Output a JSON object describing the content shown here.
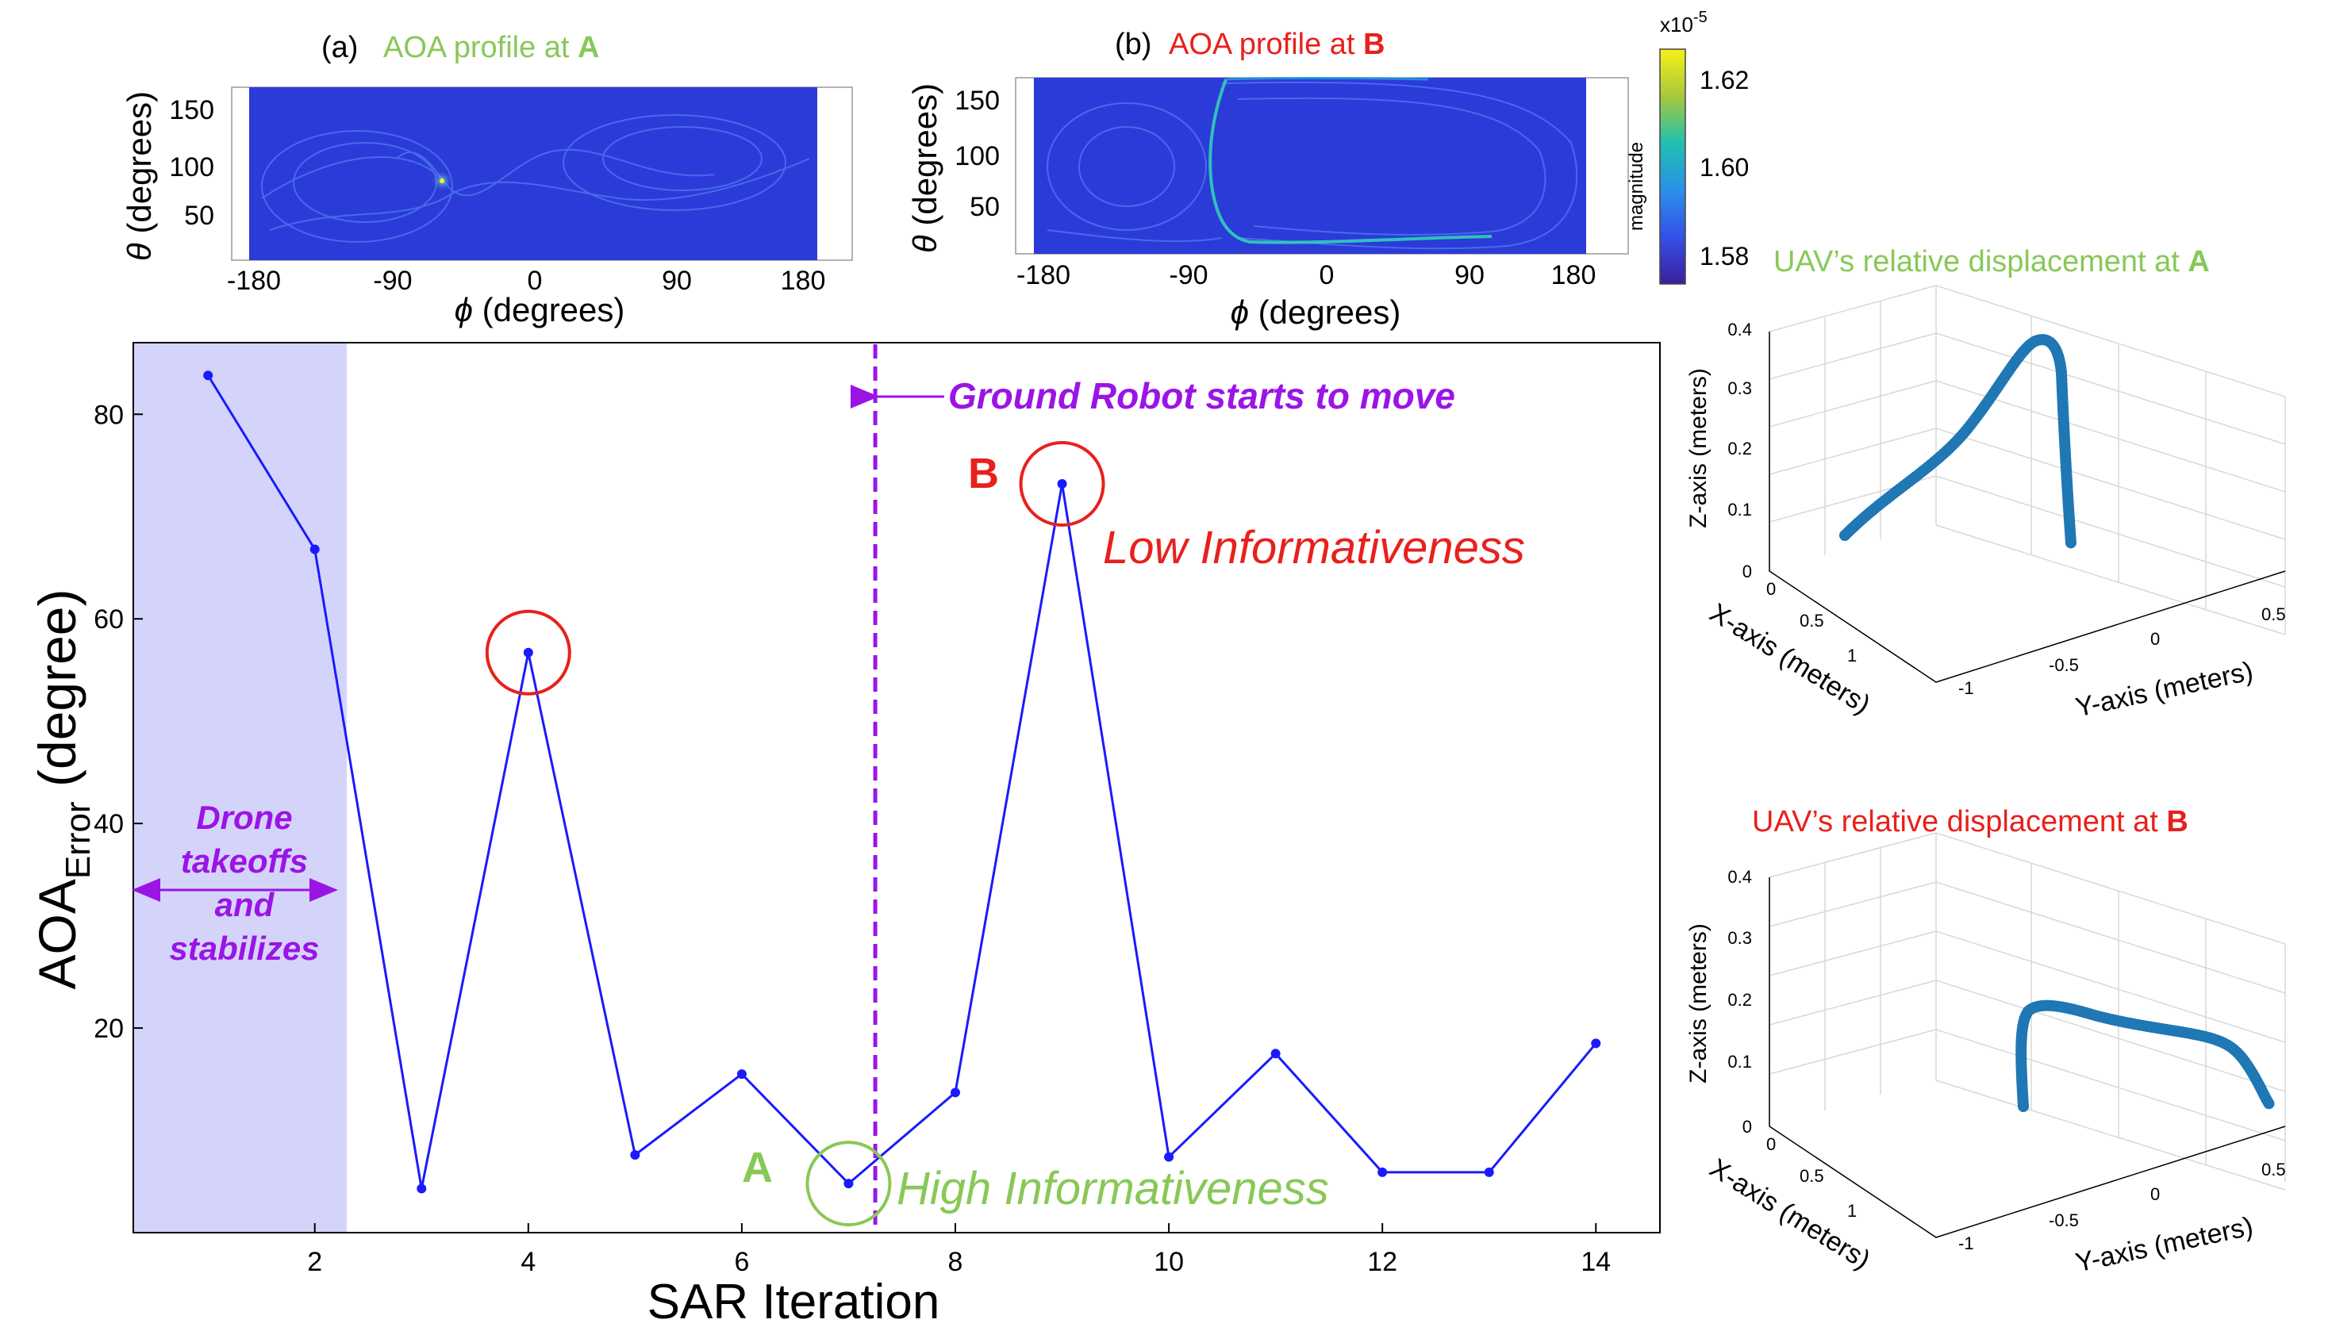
{
  "colors": {
    "line": "#1a1aff",
    "shade": "#d4d4fa",
    "purple": "#9b14e6",
    "red": "#e8201c",
    "green": "#88c857",
    "traj": "#1f77b4",
    "heat_base": "#2b3bd8"
  },
  "chart_data": [
    {
      "type": "line",
      "title": "",
      "xlabel": "SAR Iteration",
      "ylabel_main": "AOA",
      "ylabel_sub": "Error",
      "ylabel_unit": " (degree)",
      "xlim": [
        0.3,
        14.6
      ],
      "ylim": [
        0,
        87
      ],
      "xticks": [
        2,
        4,
        6,
        8,
        10,
        12,
        14
      ],
      "yticks": [
        20,
        40,
        60,
        80
      ],
      "x": [
        1,
        2,
        3,
        4,
        5,
        6,
        7,
        8,
        9,
        10,
        11,
        12,
        13,
        14
      ],
      "values": [
        83.8,
        66.8,
        4.3,
        56.7,
        7.6,
        15.5,
        4.8,
        13.7,
        73.2,
        7.4,
        17.5,
        5.9,
        5.9,
        18.5
      ],
      "shaded_region": {
        "x_from": 0.3,
        "x_to": 2.3,
        "label_lines": [
          "Drone",
          "takeoffs",
          "and",
          "stabilizes"
        ]
      },
      "vline": {
        "x": 7.25,
        "label": "Ground Robot starts to move"
      },
      "annotations": [
        {
          "label": "",
          "x": 4,
          "y": 56.7,
          "color": "red"
        },
        {
          "label": "B",
          "x": 9,
          "y": 73.2,
          "color": "red",
          "text": "Low Informativeness"
        },
        {
          "label": "A",
          "x": 7,
          "y": 4.8,
          "color": "green",
          "text": "High Informativeness"
        }
      ]
    },
    {
      "type": "heatmap",
      "prefix": "(a)",
      "title": "AOA profile at ",
      "title_bold": "A",
      "xlabel_sym": "ϕ",
      "xlabel": " (degrees)",
      "ylabel_sym": "θ",
      "ylabel": " (degrees)",
      "xticks": [
        "-180",
        "-90",
        "0",
        "90",
        "180"
      ],
      "yticks": [
        "150",
        "100",
        "50"
      ]
    },
    {
      "type": "heatmap",
      "prefix": "(b)",
      "title": "AOA profile at ",
      "title_bold": "B",
      "xlabel_sym": "ϕ",
      "xlabel": " (degrees)",
      "ylabel_sym": "θ",
      "ylabel": " (degrees)",
      "xticks": [
        "-180",
        "-90",
        "0",
        "90",
        "180"
      ],
      "yticks": [
        "150",
        "100",
        "50"
      ],
      "colorbar": {
        "exponent": "x10",
        "exp_power": "-5",
        "label": "magnitude",
        "ticks": [
          "1.62",
          "1.60",
          "1.58"
        ]
      }
    },
    {
      "type": "scatter",
      "title": "UAV’s relative displacement at ",
      "title_bold": "A",
      "xlabel": "X-axis (meters)",
      "ylabel": "Y-axis (meters)",
      "zlabel": "Z-axis (meters)",
      "zticks": [
        "0",
        "0.1",
        "0.2",
        "0.3",
        "0.4"
      ],
      "xticks": [
        "0",
        "0.5",
        "1"
      ],
      "yticks": [
        "-1",
        "-0.5",
        "0",
        "0.5"
      ]
    },
    {
      "type": "scatter",
      "title": "UAV’s relative displacement at ",
      "title_bold": "B",
      "xlabel": "X-axis (meters)",
      "ylabel": "Y-axis (meters)",
      "zlabel": "Z-axis (meters)",
      "zticks": [
        "0",
        "0.1",
        "0.2",
        "0.3",
        "0.4"
      ],
      "xticks": [
        "0",
        "0.5",
        "1"
      ],
      "yticks": [
        "-1",
        "-0.5",
        "0",
        "0.5"
      ]
    }
  ]
}
